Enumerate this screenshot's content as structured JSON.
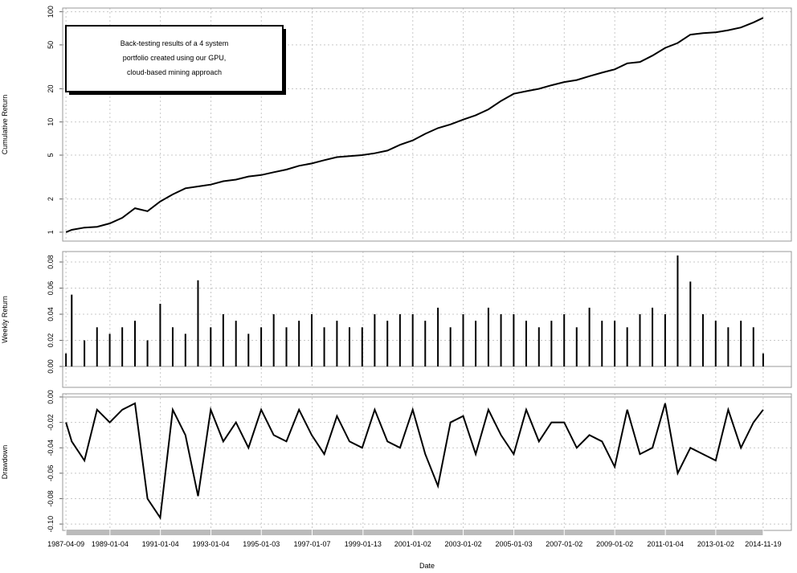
{
  "chart_data": [
    {
      "type": "line",
      "ylabel": "Cumulative Return",
      "log": true,
      "grid": true,
      "color": "#000000",
      "annotation": [
        "Back-testing results of a 4 system",
        "portfolio created using our GPU,",
        "cloud-based mining approach"
      ],
      "xlim": [
        "1987-02-20",
        "2016-01-01"
      ],
      "x": [
        "1987-04-09",
        "1987-07-01",
        "1988-01-01",
        "1988-07-01",
        "1989-01-01",
        "1989-07-01",
        "1990-01-01",
        "1990-07-01",
        "1991-01-01",
        "1991-07-01",
        "1992-01-01",
        "1992-07-01",
        "1993-01-01",
        "1993-07-01",
        "1994-01-01",
        "1994-07-01",
        "1995-01-01",
        "1995-07-01",
        "1996-01-01",
        "1996-07-01",
        "1997-01-01",
        "1997-07-01",
        "1998-01-01",
        "1998-07-01",
        "1999-01-01",
        "1999-07-01",
        "2000-01-01",
        "2000-07-01",
        "2001-01-01",
        "2001-07-01",
        "2002-01-01",
        "2002-07-01",
        "2003-01-01",
        "2003-07-01",
        "2004-01-01",
        "2004-07-01",
        "2005-01-01",
        "2005-07-01",
        "2006-01-01",
        "2006-07-01",
        "2007-01-01",
        "2007-07-01",
        "2008-01-01",
        "2008-07-01",
        "2009-01-01",
        "2009-07-01",
        "2010-01-01",
        "2010-07-01",
        "2011-01-01",
        "2011-07-01",
        "2012-01-01",
        "2012-07-01",
        "2013-01-01",
        "2013-07-01",
        "2014-01-01",
        "2014-07-01",
        "2014-11-19"
      ],
      "values": [
        1.0,
        1.05,
        1.1,
        1.12,
        1.2,
        1.35,
        1.65,
        1.55,
        1.9,
        2.2,
        2.5,
        2.6,
        2.7,
        2.9,
        3.0,
        3.2,
        3.3,
        3.5,
        3.7,
        4.0,
        4.2,
        4.5,
        4.8,
        4.9,
        5.0,
        5.2,
        5.5,
        6.2,
        6.8,
        7.8,
        8.8,
        9.5,
        10.5,
        11.5,
        13,
        15.5,
        18,
        19,
        20,
        21.5,
        23,
        24,
        26,
        28,
        30,
        34,
        35,
        40,
        47,
        52,
        62,
        64,
        65,
        68,
        72,
        80,
        88
      ],
      "ylim": [
        0.83,
        108
      ],
      "yticks": [
        1,
        2,
        5,
        10,
        20,
        50,
        100
      ]
    },
    {
      "type": "bar",
      "ylabel": "Weekly Return",
      "grid": true,
      "color": "#000000",
      "xlim": [
        "1987-02-20",
        "2016-01-01"
      ],
      "x": [
        "1987-04-09",
        "1987-07-01",
        "1988-01-01",
        "1988-07-01",
        "1989-01-01",
        "1989-07-01",
        "1990-01-01",
        "1990-07-01",
        "1991-01-01",
        "1991-07-01",
        "1992-01-01",
        "1992-07-01",
        "1993-01-01",
        "1993-07-01",
        "1994-01-01",
        "1994-07-01",
        "1995-01-01",
        "1995-07-01",
        "1996-01-01",
        "1996-07-01",
        "1997-01-01",
        "1997-07-01",
        "1998-01-01",
        "1998-07-01",
        "1999-01-01",
        "1999-07-01",
        "2000-01-01",
        "2000-07-01",
        "2001-01-01",
        "2001-07-01",
        "2002-01-01",
        "2002-07-01",
        "2003-01-01",
        "2003-07-01",
        "2004-01-01",
        "2004-07-01",
        "2005-01-01",
        "2005-07-01",
        "2006-01-01",
        "2006-07-01",
        "2007-01-01",
        "2007-07-01",
        "2008-01-01",
        "2008-07-01",
        "2009-01-01",
        "2009-07-01",
        "2010-01-01",
        "2010-07-01",
        "2011-01-01",
        "2011-07-01",
        "2012-01-01",
        "2012-07-01",
        "2013-01-01",
        "2013-07-01",
        "2014-01-01",
        "2014-07-01",
        "2014-11-19"
      ],
      "values": [
        0.01,
        0.055,
        0.02,
        0.03,
        0.025,
        0.03,
        0.035,
        0.02,
        0.048,
        0.03,
        0.025,
        0.066,
        0.03,
        0.04,
        0.035,
        0.025,
        0.03,
        0.04,
        0.03,
        0.035,
        0.04,
        0.03,
        0.035,
        0.03,
        0.03,
        0.04,
        0.035,
        0.04,
        0.04,
        0.035,
        0.045,
        0.03,
        0.04,
        0.035,
        0.045,
        0.04,
        0.04,
        0.035,
        0.03,
        0.035,
        0.04,
        0.03,
        0.045,
        0.035,
        0.035,
        0.03,
        0.04,
        0.045,
        0.04,
        0.085,
        0.065,
        0.04,
        0.035,
        0.03,
        0.035,
        0.03,
        0.01
      ],
      "ylim": [
        -0.016,
        0.088
      ],
      "yticks": [
        {
          "value": 0,
          "label": "0.00"
        },
        0.02,
        0.04,
        0.06,
        0.08
      ]
    },
    {
      "type": "line",
      "ylabel": "Drawdown",
      "xlabel": "Date",
      "grid": true,
      "color": "#000000",
      "xlim": [
        "1987-02-20",
        "2016-01-01"
      ],
      "x": [
        "1987-04-09",
        "1987-07-01",
        "1988-01-01",
        "1988-07-01",
        "1989-01-01",
        "1989-07-01",
        "1990-01-01",
        "1990-07-01",
        "1991-01-01",
        "1991-07-01",
        "1992-01-01",
        "1992-07-01",
        "1993-01-01",
        "1993-07-01",
        "1994-01-01",
        "1994-07-01",
        "1995-01-01",
        "1995-07-01",
        "1996-01-01",
        "1996-07-01",
        "1997-01-01",
        "1997-07-01",
        "1998-01-01",
        "1998-07-01",
        "1999-01-01",
        "1999-07-01",
        "2000-01-01",
        "2000-07-01",
        "2001-01-01",
        "2001-07-01",
        "2002-01-01",
        "2002-07-01",
        "2003-01-01",
        "2003-07-01",
        "2004-01-01",
        "2004-07-01",
        "2005-01-01",
        "2005-07-01",
        "2006-01-01",
        "2006-07-01",
        "2007-01-01",
        "2007-07-01",
        "2008-01-01",
        "2008-07-01",
        "2009-01-01",
        "2009-07-01",
        "2010-01-01",
        "2010-07-01",
        "2011-01-01",
        "2011-07-01",
        "2012-01-01",
        "2012-07-01",
        "2013-01-01",
        "2013-07-01",
        "2014-01-01",
        "2014-07-01",
        "2014-11-19"
      ],
      "values": [
        -0.02,
        -0.035,
        -0.05,
        -0.01,
        -0.02,
        -0.01,
        -0.005,
        -0.08,
        -0.095,
        -0.01,
        -0.03,
        -0.078,
        -0.01,
        -0.035,
        -0.02,
        -0.04,
        -0.01,
        -0.03,
        -0.035,
        -0.01,
        -0.03,
        -0.045,
        -0.015,
        -0.035,
        -0.04,
        -0.01,
        -0.035,
        -0.04,
        -0.01,
        -0.045,
        -0.07,
        -0.02,
        -0.015,
        -0.045,
        -0.01,
        -0.03,
        -0.045,
        -0.01,
        -0.035,
        -0.02,
        -0.02,
        -0.04,
        -0.03,
        -0.035,
        -0.055,
        -0.01,
        -0.045,
        -0.04,
        -0.005,
        -0.06,
        -0.04,
        -0.045,
        -0.05,
        -0.01,
        -0.04,
        -0.02,
        -0.01
      ],
      "ylim": [
        -0.105,
        0.0025
      ],
      "yticks": [
        {
          "value": 0,
          "label": "0.00"
        },
        -0.02,
        -0.04,
        -0.06,
        -0.08,
        {
          "value": -0.1,
          "label": "-0.10"
        }
      ],
      "xticks": [
        "1987-04-09",
        "1989-01-04",
        "1991-01-04",
        "1993-01-04",
        "1995-01-03",
        "1997-01-07",
        "1999-01-13",
        "2001-01-02",
        "2003-01-02",
        "2005-01-03",
        "2007-01-02",
        "2009-01-02",
        "2011-01-04",
        "2013-01-02",
        "2014-11-19"
      ]
    }
  ]
}
